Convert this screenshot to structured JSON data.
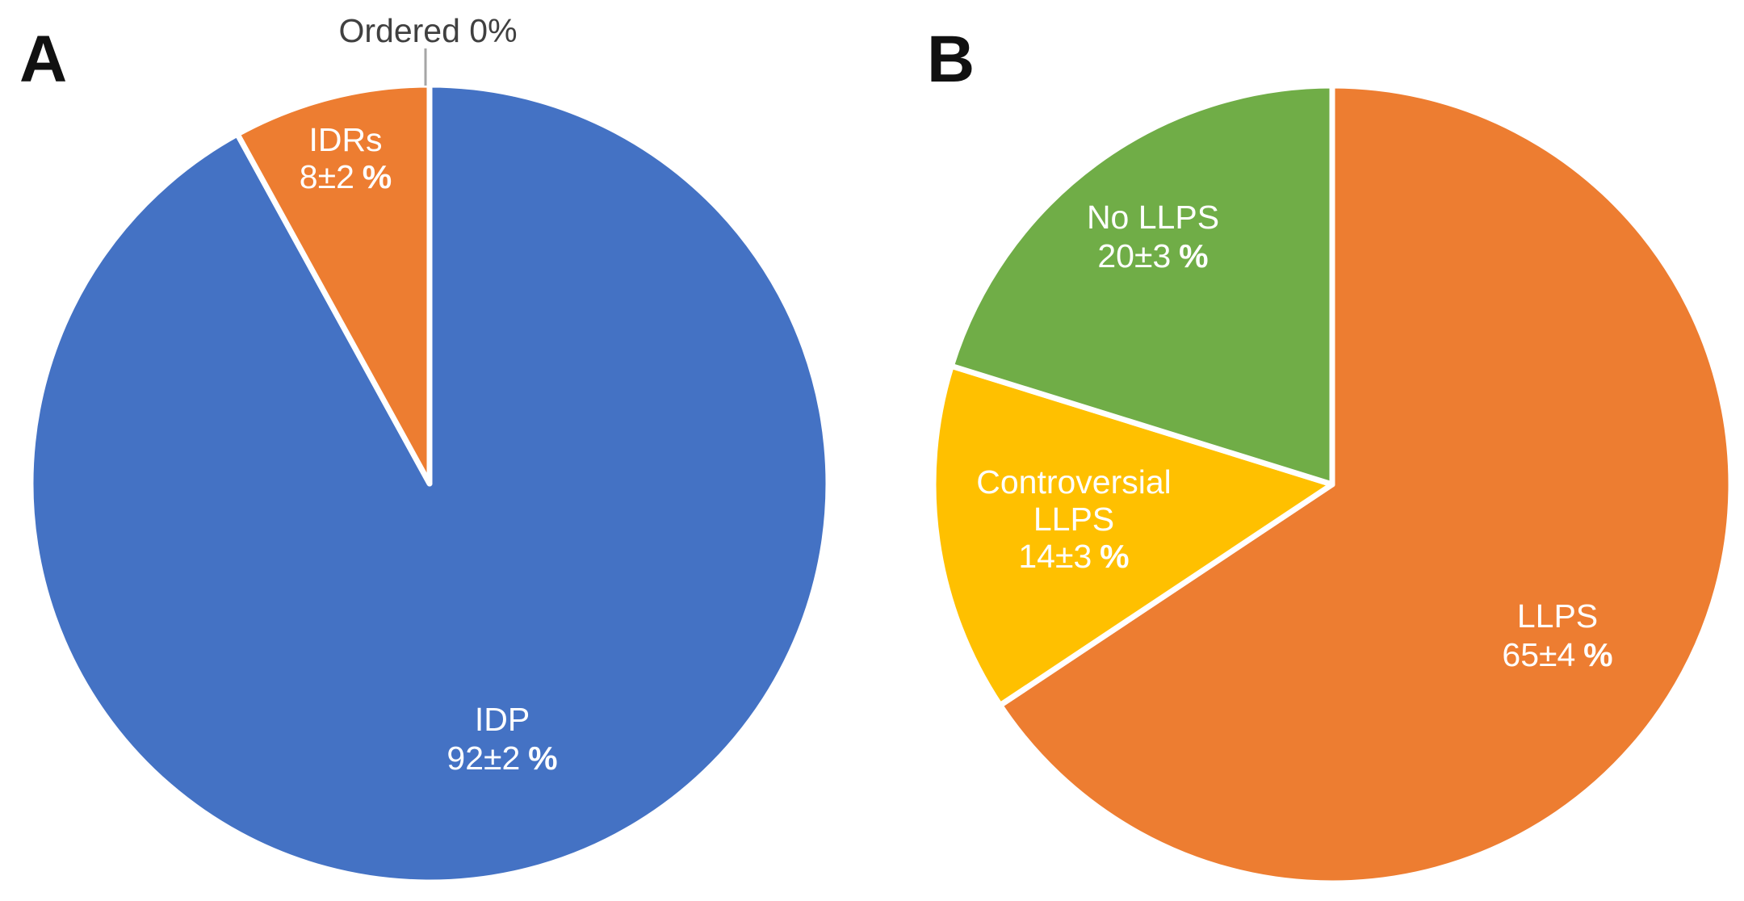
{
  "figure": {
    "background": "#ffffff",
    "separator_color": "#ffffff",
    "leader_line_color": "#a6a6a6"
  },
  "panels": [
    {
      "letter": "A"
    },
    {
      "letter": "B"
    }
  ],
  "chart_data": [
    {
      "type": "pie",
      "panel": "A",
      "title": "",
      "start_angle_deg": 0,
      "direction": "clockwise",
      "legend": "none",
      "labels_on_slices": true,
      "slices": [
        {
          "label": "IDP",
          "value": 92,
          "uncertainty": 2,
          "label_lines": [
            "IDP"
          ],
          "value_text": "92±2",
          "unit": "%",
          "color": "#4472C4",
          "text_color": "#ffffff"
        },
        {
          "label": "IDRs",
          "value": 8,
          "uncertainty": 2,
          "label_lines": [
            "IDRs"
          ],
          "value_text": "8±2",
          "unit": "%",
          "color": "#ED7D31",
          "text_color": "#ffffff"
        },
        {
          "label": "Ordered",
          "value": 0,
          "callout_text": "Ordered 0%",
          "text_color": "#404040"
        }
      ]
    },
    {
      "type": "pie",
      "panel": "B",
      "title": "",
      "start_angle_deg": 0,
      "direction": "clockwise",
      "legend": "none",
      "labels_on_slices": true,
      "slices": [
        {
          "label": "LLPS",
          "value": 65,
          "uncertainty": 4,
          "label_lines": [
            "LLPS"
          ],
          "value_text": "65±4",
          "unit": "%",
          "color": "#ED7D31",
          "text_color": "#ffffff"
        },
        {
          "label": "Controversial LLPS",
          "value": 14,
          "uncertainty": 3,
          "label_lines": [
            "Controversial",
            "LLPS"
          ],
          "value_text": "14±3",
          "unit": "%",
          "color": "#FFC000",
          "text_color": "#ffffff"
        },
        {
          "label": "No LLPS",
          "value": 20,
          "uncertainty": 3,
          "label_lines": [
            "No LLPS"
          ],
          "value_text": "20±3",
          "unit": "%",
          "color": "#70AD47",
          "text_color": "#ffffff"
        }
      ]
    }
  ]
}
